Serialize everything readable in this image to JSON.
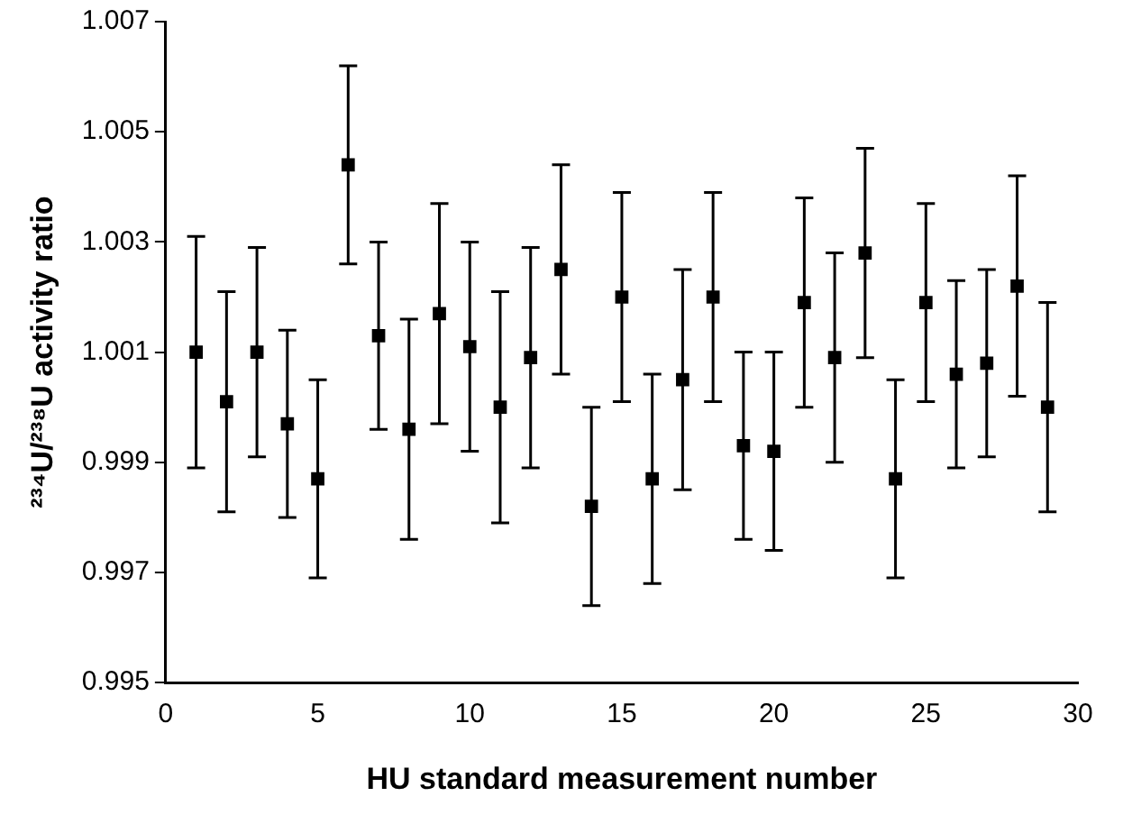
{
  "chart_data": {
    "type": "scatter",
    "xlabel": "HU standard measurement number",
    "ylabel": "²³⁴U/²³⁸U activity ratio",
    "x": [
      1,
      2,
      3,
      4,
      5,
      6,
      7,
      8,
      9,
      10,
      11,
      12,
      13,
      14,
      15,
      16,
      17,
      18,
      19,
      20,
      21,
      22,
      23,
      24,
      25,
      26,
      27,
      28,
      29
    ],
    "series": [
      {
        "color": "#000000",
        "values": [
          1.001,
          1.0001,
          1.001,
          0.9997,
          0.9987,
          1.0044,
          1.0013,
          0.9996,
          1.0017,
          1.0011,
          1.0,
          1.0009,
          1.0025,
          0.9982,
          1.002,
          0.9987,
          1.0005,
          1.002,
          0.9993,
          0.9992,
          1.0019,
          1.0009,
          1.0028,
          0.9987,
          1.0019,
          1.0006,
          1.0008,
          1.0022,
          1.0
        ],
        "errors": [
          0.0021,
          0.002,
          0.0019,
          0.0017,
          0.0018,
          0.0018,
          0.0017,
          0.002,
          0.002,
          0.0019,
          0.0021,
          0.002,
          0.0019,
          0.0018,
          0.0019,
          0.0019,
          0.002,
          0.0019,
          0.0017,
          0.0018,
          0.0019,
          0.0019,
          0.0019,
          0.0018,
          0.0018,
          0.0017,
          0.0017,
          0.002,
          0.0019
        ]
      }
    ],
    "xlim": [
      0,
      30
    ],
    "xticks": [
      0,
      5,
      10,
      15,
      20,
      25,
      30
    ],
    "ylim": [
      0.995,
      1.007
    ],
    "yticks": [
      0.995,
      0.997,
      0.999,
      1.001,
      1.003,
      1.005,
      1.007
    ],
    "marker": "square",
    "grid": false,
    "legend": false
  }
}
